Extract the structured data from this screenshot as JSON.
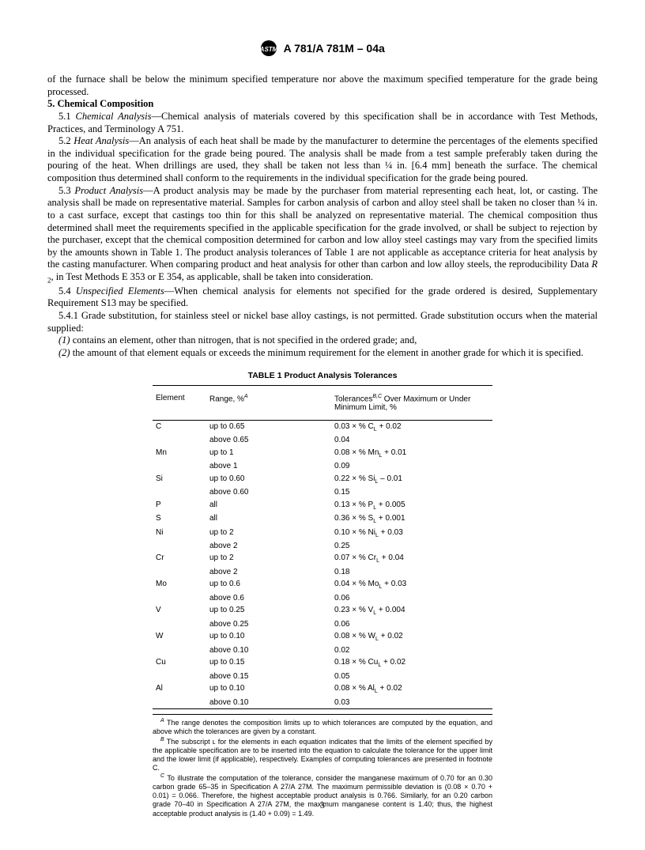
{
  "header": {
    "designation": "A 781/A 781M – 04a"
  },
  "paragraphs": {
    "cont": "of the furnace shall be below the minimum specified temperature nor above the maximum specified temperature for the grade being processed.",
    "sec5_title": "5.  Chemical Composition",
    "p51_lead": "5.1  ",
    "p51_head": "Chemical Analysis",
    "p51_body": "—Chemical analysis of materials covered by this specification shall be in accordance with Test Methods, Practices, and Terminology A 751.",
    "p52_lead": "5.2  ",
    "p52_head": "Heat Analysis",
    "p52_body": "—An analysis of each heat shall be made by the manufacturer to determine the percentages of the elements specified in the individual specification for the grade being poured. The analysis shall be made from a test sample preferably taken during the pouring of the heat. When drillings are used, they shall be taken not less than ¼ in. [6.4 mm] beneath the surface. The chemical composition thus determined shall conform to the requirements in the individual specification for the grade being poured.",
    "p53_lead": "5.3  ",
    "p53_head": "Product Analysis",
    "p53_body1": "—A product analysis may be made by the purchaser from material representing each heat, lot, or casting. The analysis shall be made on representative material. Samples for carbon analysis of carbon and alloy steel shall be taken no closer than ¼ in. to a cast surface, except that castings too thin for this shall be analyzed on representative material. The chemical composition thus determined shall meet the requirements specified in the applicable specification for the grade involved, or shall be subject to rejection by the purchaser, except that the chemical composition determined for carbon and low alloy steel castings may vary from the specified limits by the amounts shown in Table 1. The product analysis tolerances of Table 1 are not applicable as acceptance criteria for heat analysis by the casting manufacturer. When comparing product and heat analysis for other than carbon and low alloy steels, the reproducibility Data ",
    "p53_R": "R",
    "p53_body2": ", in Test Methods E 353 or E 354, as applicable, shall be taken into consideration.",
    "p54_lead": "5.4  ",
    "p54_head": "Unspecified Elements",
    "p54_body": "—When chemical analysis for elements not specified for the grade ordered is desired, Supplementary Requirement S13 may be specified.",
    "p541": "5.4.1  Grade substitution, for stainless steel or nickel base alloy castings, is not permitted. Grade substitution occurs when the material supplied:",
    "item1_lead": "(1)",
    "item1": " contains an element, other than nitrogen, that is not specified in the ordered grade; and,",
    "item2_lead": "(2)",
    "item2": " the amount of that element equals or exceeds the minimum requirement for the element in another grade for which it is specified."
  },
  "table": {
    "title": "TABLE 1   Product Analysis Tolerances",
    "headers": {
      "element": "Element",
      "range": "Range, %",
      "range_sup": "A",
      "tol": "Tolerances",
      "tol_sup": "B,C",
      "tol_rest": " Over Maximum or Under Minimum Limit, %"
    },
    "rows": [
      {
        "el": "C",
        "r1": "up to 0.65",
        "t1": "0.03 × % C",
        "suf1": "+ 0.02",
        "r2": "above 0.65",
        "t2": "0.04"
      },
      {
        "el": "Mn",
        "r1": "up to 1",
        "t1": "0.08 × % Mn",
        "suf1": "+ 0.01",
        "r2": "above 1",
        "t2": "0.09"
      },
      {
        "el": "Si",
        "r1": "up to 0.60",
        "t1": "0.22 × % Si",
        "suf1": "– 0.01",
        "r2": "above 0.60",
        "t2": "0.15"
      },
      {
        "el": "P",
        "r1": "all",
        "t1": "0.13 × % P",
        "suf1": "+ 0.005"
      },
      {
        "el": "S",
        "r1": "all",
        "t1": "0.36 × % S",
        "suf1": "+ 0.001"
      },
      {
        "el": "Ni",
        "r1": "up to 2",
        "t1": "0.10 × % Ni",
        "suf1": "+ 0.03",
        "r2": "above 2",
        "t2": "0.25"
      },
      {
        "el": "Cr",
        "r1": "up to 2",
        "t1": "0.07 × % Cr",
        "suf1": "+ 0.04",
        "r2": "above 2",
        "t2": "0.18"
      },
      {
        "el": "Mo",
        "r1": "up to 0.6",
        "t1": "0.04 × % Mo",
        "suf1": "+ 0.03",
        "r2": "above 0.6",
        "t2": "0.06"
      },
      {
        "el": "V",
        "r1": "up to 0.25",
        "t1": "0.23 × % V",
        "suf1": "+ 0.004",
        "r2": "above 0.25",
        "t2": "0.06"
      },
      {
        "el": "W",
        "r1": "up to 0.10",
        "t1": "0.08 × % W",
        "suf1": "+ 0.02",
        "r2": "above 0.10",
        "t2": "0.02"
      },
      {
        "el": "Cu",
        "r1": "up to 0.15",
        "t1": "0.18 × % Cu",
        "suf1": "+ 0.02",
        "r2": "above 0.15",
        "t2": "0.05"
      },
      {
        "el": "Al",
        "r1": "up to 0.10",
        "t1": "0.08 × % Al",
        "suf1": "+ 0.02",
        "r2": "above 0.10",
        "t2": "0.03"
      }
    ]
  },
  "footnotes": {
    "A_sup": "A",
    "A": " The range denotes the composition limits up to which tolerances are computed by the equation, and above which the tolerances are given by a constant.",
    "B_sup": "B",
    "B": " The subscript ʟ for the elements in each equation indicates that the limits of the element specified by the applicable specification are to be inserted into the equation to calculate the tolerance for the upper limit and the lower limit (if applicable), respectively. Examples of computing tolerances are presented in footnote C.",
    "C_sup": "C",
    "C": " To illustrate the computation of the tolerance, consider the manganese maximum of 0.70 for an 0.30 carbon grade 65–35 in Specification A 27/A 27M. The maximum permissible deviation is (0.08 × 0.70 + 0.01) = 0.066. Therefore, the highest acceptable product analysis is 0.766. Similarly, for an 0.20 carbon grade 70–40 in Specification A 27/A 27M, the maximum manganese content is 1.40; thus, the highest acceptable product analysis is (1.40 + 0.09) = 1.49."
  },
  "page_number": "3"
}
